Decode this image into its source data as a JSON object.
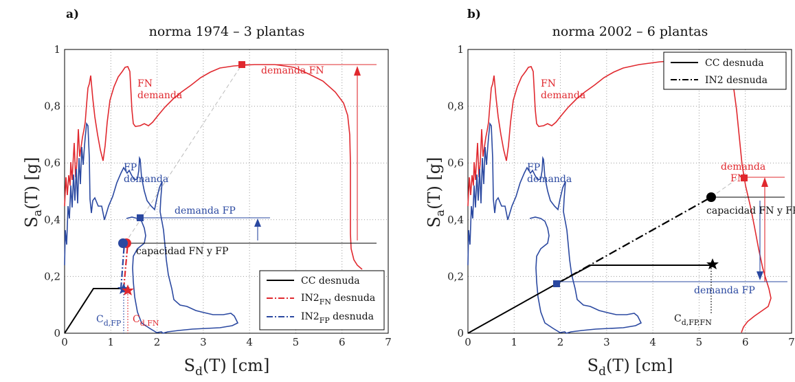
{
  "chart_data": [
    {
      "type": "line",
      "panel_label": "a)",
      "title": "norma 1974 – 3 plantas",
      "xlabel": "S_d(T) [cm]",
      "ylabel": "S_a(T) [g]",
      "xlim": [
        0,
        7
      ],
      "ylim": [
        0,
        1
      ],
      "xticks": [
        "0",
        "1",
        "2",
        "3",
        "4",
        "5",
        "6",
        "7"
      ],
      "yticks": [
        "0",
        "0,2",
        "0,4",
        "0,6",
        "0,8",
        "1"
      ],
      "grid": true,
      "legend_position": "bottom-right",
      "legend": [
        "CC desnuda",
        "IN2FN desnuda",
        "IN2FP desnuda"
      ],
      "colors": {
        "FN": "#e0282e",
        "FP": "#2a48a0",
        "CC": "#000000"
      },
      "series": [
        {
          "name": "CC desnuda",
          "x": [
            0,
            0.63,
            1.35
          ],
          "y": [
            0,
            0.16,
            0.16
          ]
        },
        {
          "name": "IN2FN desnuda",
          "x": [
            1.35,
            1.4
          ],
          "y": [
            0.16,
            0.315
          ]
        },
        {
          "name": "IN2FP desnuda",
          "x": [
            1.3,
            1.35
          ],
          "y": [
            0.16,
            0.315
          ]
        }
      ],
      "points": {
        "demanda_FN": [
          3.85,
          0.94
        ],
        "demanda_FP": [
          1.65,
          0.405
        ],
        "capacidad": [
          1.35,
          0.315
        ],
        "stars": [
          [
            1.3,
            0.16
          ],
          [
            1.4,
            0.155
          ]
        ]
      },
      "annotations": [
        "FN",
        "demanda",
        "FP",
        "demanda",
        "demanda FN",
        "demanda FP",
        "capacidad FN y FP",
        "C",
        "d,FP",
        "C",
        "d,FN"
      ]
    },
    {
      "type": "line",
      "panel_label": "b)",
      "title": "norma 2002 – 6 plantas",
      "xlabel": "S_d(T) [cm]",
      "ylabel": "S_a(T) [g]",
      "xlim": [
        0,
        7
      ],
      "ylim": [
        0,
        1
      ],
      "xticks": [
        "0",
        "1",
        "2",
        "3",
        "4",
        "5",
        "6",
        "7"
      ],
      "yticks": [
        "0",
        "0,2",
        "0,4",
        "0,6",
        "0,8",
        "1"
      ],
      "grid": true,
      "legend_position": "top-right",
      "legend": [
        "CC desnuda",
        "IN2 desnuda"
      ],
      "series": [
        {
          "name": "CC desnuda",
          "x": [
            0,
            1.95,
            2.7,
            5.3
          ],
          "y": [
            0,
            0.175,
            0.24,
            0.24
          ]
        },
        {
          "name": "IN2 desnuda",
          "x": [
            1.95,
            5.3
          ],
          "y": [
            0.175,
            0.48
          ]
        }
      ],
      "points": {
        "demanda_FN": [
          6.0,
          0.54
        ],
        "demanda_FP": [
          1.95,
          0.175
        ],
        "capacidad": [
          5.3,
          0.48
        ],
        "star": [
          5.3,
          0.24
        ]
      },
      "annotations": [
        "FN",
        "demanda",
        "FP",
        "demanda",
        "demanda",
        "FN",
        "capacidad FN y FP",
        "demanda FP",
        "C",
        "d,FP,FN"
      ]
    }
  ],
  "labels": {
    "a_label": "a)",
    "b_label": "b)",
    "a_title": "norma 1974 – 3 plantas",
    "b_title": "norma 2002 – 6 plantas",
    "x_main": "S",
    "x_sub": "d",
    "x_rest": "(T) [cm]",
    "y_main": "S",
    "y_sub": "a",
    "y_rest": "(T) [g]",
    "fn": "FN",
    "fp": "FP",
    "demanda": "demanda",
    "demanda_fn": "demanda FN",
    "demanda_fp": "demanda FP",
    "capacidad": "capacidad FN y FP",
    "c": "C",
    "c_sub_fp": "d,FP",
    "c_sub_fn": "d,FN",
    "c_sub_fpfn": "d,FP,FN",
    "leg_cc": "CC desnuda",
    "leg_in2": "IN2",
    "leg_sub_fn": "FN",
    "leg_sub_fp": "FP",
    "leg_desnuda": " desnuda",
    "leg_in2_b": "IN2 desnuda"
  }
}
